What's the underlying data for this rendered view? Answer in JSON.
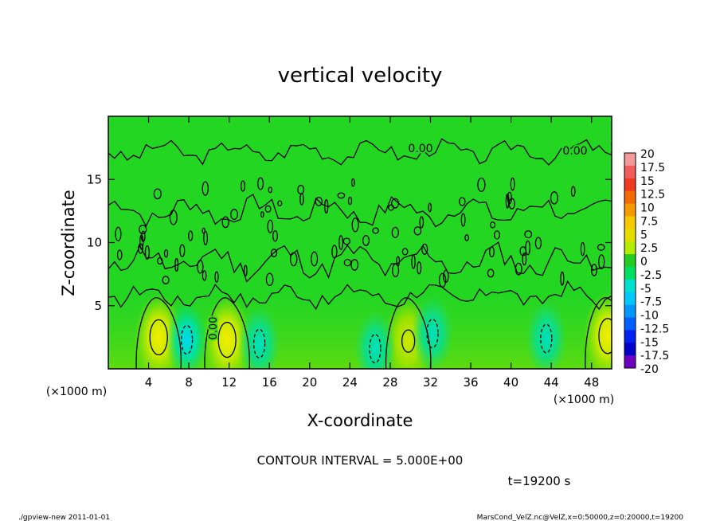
{
  "chart_data": {
    "type": "heatmap",
    "title": "vertical velocity",
    "xlabel": "X-coordinate",
    "ylabel": "Z-coordinate",
    "x_unit": "(×1000 m)",
    "xlim": [
      0,
      50
    ],
    "ylim": [
      0,
      20
    ],
    "x_ticks": [
      4,
      8,
      12,
      16,
      20,
      24,
      28,
      32,
      36,
      40,
      44,
      48
    ],
    "y_ticks": [
      5,
      10,
      15
    ],
    "contour_interval_text": "CONTOUR INTERVAL = 5.000E+00",
    "contour_labels": [
      "0.00",
      "0.00",
      "0.00"
    ],
    "time_text": "t=19200 s",
    "footer_left": "./gpview-new  2011-01-01",
    "footer_right": "MarsCond_VelZ.nc@VelZ,x=0:50000,z=0:20000,t=19200",
    "colorbar": {
      "levels": [
        20,
        17.5,
        15,
        12.5,
        10,
        7.5,
        5,
        2.5,
        0,
        -2.5,
        -5,
        -7.5,
        -10,
        -12.5,
        -15,
        -17.5,
        -20
      ],
      "colors": [
        "#f49a9a",
        "#f25c5c",
        "#f03a20",
        "#f26a00",
        "#f59a00",
        "#f6c800",
        "#e6dd00",
        "#b4ec00",
        "#22cc22",
        "#00e060",
        "#00e0d0",
        "#00c8f8",
        "#0098ff",
        "#0060ff",
        "#0020f0",
        "#0000c8",
        "#6a00c0"
      ]
    },
    "features": {
      "updrafts": [
        {
          "x": 5.0,
          "z": 2.5,
          "peak": 7.5
        },
        {
          "x": 11.8,
          "z": 2.3,
          "peak": 7.5
        },
        {
          "x": 29.8,
          "z": 2.2,
          "peak": 5.0
        },
        {
          "x": 49.6,
          "z": 2.6,
          "peak": 7.5
        }
      ],
      "downdrafts": [
        {
          "x": 7.8,
          "z": 2.3,
          "peak": -7.5
        },
        {
          "x": 15.0,
          "z": 2.0,
          "peak": -5.0
        },
        {
          "x": 26.5,
          "z": 1.6,
          "peak": -5.0
        },
        {
          "x": 32.2,
          "z": 2.8,
          "peak": -5.0
        },
        {
          "x": 43.5,
          "z": 2.4,
          "peak": -5.0
        }
      ]
    }
  }
}
